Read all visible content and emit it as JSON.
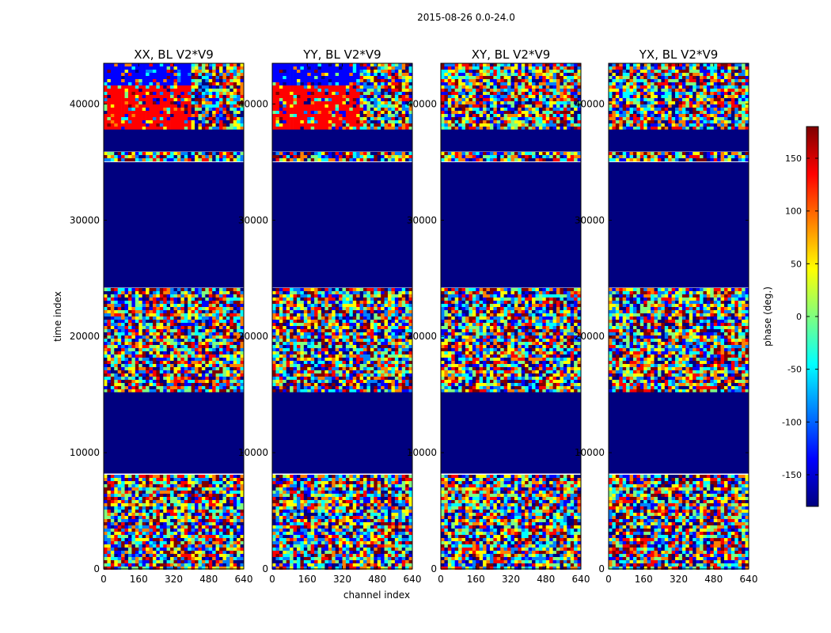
{
  "figure_title": "2015-08-26 0.0-24.0",
  "colorbar_label": "phase (deg.)",
  "colormap": [
    "#00007f",
    "#0000ff",
    "#0080ff",
    "#00ffff",
    "#7fff7f",
    "#ffff00",
    "#ff8000",
    "#ff0000",
    "#7f0000"
  ],
  "chart_data": {
    "type": "heatmap",
    "title": "2015-08-26 0.0-24.0",
    "xlabel": "channel index",
    "ylabel": "time index",
    "xlim": [
      0,
      640
    ],
    "ylim": [
      0,
      43500
    ],
    "xticks": [
      0,
      160,
      320,
      480,
      640
    ],
    "yticks": [
      0,
      10000,
      20000,
      30000,
      40000
    ],
    "panels": [
      {
        "name": "xx",
        "title": "XX, BL V2*V9"
      },
      {
        "name": "yy",
        "title": "YY, BL V2*V9"
      },
      {
        "name": "xy",
        "title": "XY, BL V2*V9"
      },
      {
        "name": "yx",
        "title": "YX, BL V2*V9"
      }
    ],
    "colorbar": {
      "label": "phase (deg.)",
      "range": [
        -180,
        180
      ],
      "ticks": [
        -150,
        -100,
        -50,
        0,
        50,
        100,
        150
      ]
    },
    "flagged_time_ranges": [
      [
        8200,
        15200
      ],
      [
        24200,
        35000
      ],
      [
        35900,
        37800
      ]
    ]
  }
}
